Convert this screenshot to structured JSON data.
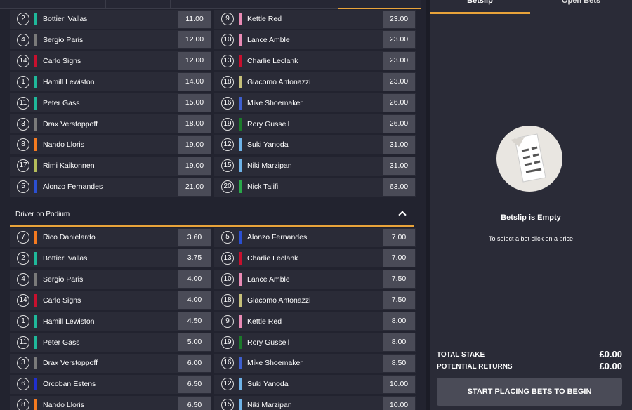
{
  "sections": [
    {
      "rows": [
        {
          "left": {
            "number": 2,
            "name": "Bottieri Vallas",
            "odds": "11.00",
            "color": "#1fb89a"
          },
          "right": {
            "number": 9,
            "name": "Kettle Red",
            "odds": "23.00",
            "color": "#e98bb5"
          }
        },
        {
          "left": {
            "number": 4,
            "name": "Sergio Paris",
            "odds": "12.00",
            "color": "#7a7a7a"
          },
          "right": {
            "number": 10,
            "name": "Lance Amble",
            "odds": "23.00",
            "color": "#e98bb5"
          }
        },
        {
          "left": {
            "number": 14,
            "name": "Carlo Signs",
            "odds": "12.00",
            "color": "#c8102e"
          },
          "right": {
            "number": 13,
            "name": "Charlie Leclank",
            "odds": "23.00",
            "color": "#c8102e"
          }
        },
        {
          "left": {
            "number": 1,
            "name": "Hamill Lewiston",
            "odds": "14.00",
            "color": "#1fb89a"
          },
          "right": {
            "number": 18,
            "name": "Giacomo Antonazzi",
            "odds": "23.00",
            "color": "#c6c07a"
          }
        },
        {
          "left": {
            "number": 11,
            "name": "Peter Gass",
            "odds": "15.00",
            "color": "#1fb89a"
          },
          "right": {
            "number": 16,
            "name": "Mike Shoemaker",
            "odds": "26.00",
            "color": "#3e5fcf"
          }
        },
        {
          "left": {
            "number": 3,
            "name": "Drax Verstoppoff",
            "odds": "18.00",
            "color": "#7a7a7a"
          },
          "right": {
            "number": 19,
            "name": "Rory Gussell",
            "odds": "26.00",
            "color": "#1b7a2a"
          }
        },
        {
          "left": {
            "number": 8,
            "name": "Nando Lloris",
            "odds": "19.00",
            "color": "#f47a20"
          },
          "right": {
            "number": 12,
            "name": "Suki Yanoda",
            "odds": "31.00",
            "color": "#6fb3e8"
          }
        },
        {
          "left": {
            "number": 17,
            "name": "Rimi Kaikonnen",
            "odds": "19.00",
            "color": "#b5bd5a"
          },
          "right": {
            "number": 15,
            "name": "Niki Marzipan",
            "odds": "31.00",
            "color": "#6fb3e8"
          }
        },
        {
          "left": {
            "number": 5,
            "name": "Alonzo Fernandes",
            "odds": "21.00",
            "color": "#2b4fd1"
          },
          "right": {
            "number": 20,
            "name": "Nick Talifi",
            "odds": "63.00",
            "color": "#2aa84a"
          }
        }
      ]
    },
    {
      "title": "Driver on Podium",
      "rows": [
        {
          "left": {
            "number": 7,
            "name": "Rico Danielardo",
            "odds": "3.60",
            "color": "#f47a20"
          },
          "right": {
            "number": 5,
            "name": "Alonzo Fernandes",
            "odds": "7.00",
            "color": "#2b4fd1"
          }
        },
        {
          "left": {
            "number": 2,
            "name": "Bottieri Vallas",
            "odds": "3.75",
            "color": "#1fb89a"
          },
          "right": {
            "number": 13,
            "name": "Charlie Leclank",
            "odds": "7.00",
            "color": "#c8102e"
          }
        },
        {
          "left": {
            "number": 4,
            "name": "Sergio Paris",
            "odds": "4.00",
            "color": "#7a7a7a"
          },
          "right": {
            "number": 10,
            "name": "Lance Amble",
            "odds": "7.50",
            "color": "#e98bb5"
          }
        },
        {
          "left": {
            "number": 14,
            "name": "Carlo Signs",
            "odds": "4.00",
            "color": "#c8102e"
          },
          "right": {
            "number": 18,
            "name": "Giacomo Antonazzi",
            "odds": "7.50",
            "color": "#c6c07a"
          }
        },
        {
          "left": {
            "number": 1,
            "name": "Hamill Lewiston",
            "odds": "4.50",
            "color": "#1fb89a"
          },
          "right": {
            "number": 9,
            "name": "Kettle Red",
            "odds": "8.00",
            "color": "#e98bb5"
          }
        },
        {
          "left": {
            "number": 11,
            "name": "Peter Gass",
            "odds": "5.00",
            "color": "#1fb89a"
          },
          "right": {
            "number": 19,
            "name": "Rory Gussell",
            "odds": "8.00",
            "color": "#1b7a2a"
          }
        },
        {
          "left": {
            "number": 3,
            "name": "Drax Verstoppoff",
            "odds": "6.00",
            "color": "#7a7a7a"
          },
          "right": {
            "number": 16,
            "name": "Mike Shoemaker",
            "odds": "8.50",
            "color": "#3e5fcf"
          }
        },
        {
          "left": {
            "number": 6,
            "name": "Orcoban Estens",
            "odds": "6.50",
            "color": "#1f2fd0"
          },
          "right": {
            "number": 12,
            "name": "Suki Yanoda",
            "odds": "10.00",
            "color": "#6fb3e8"
          }
        },
        {
          "left": {
            "number": 8,
            "name": "Nando Lloris",
            "odds": "6.50",
            "color": "#f47a20"
          },
          "right": {
            "number": 15,
            "name": "Niki Marzipan",
            "odds": "10.00",
            "color": "#6fb3e8"
          }
        }
      ]
    }
  ],
  "betslip": {
    "tabs": [
      "Betslip",
      "Open Bets"
    ],
    "empty_title": "Betslip is Empty",
    "empty_hint": "To select a bet click on a price",
    "total_stake_label": "TOTAL STAKE",
    "total_stake": "£0.00",
    "potential_returns_label": "POTENTIAL RETURNS",
    "potential_returns": "£0.00",
    "button": "START PLACING BETS TO BEGIN"
  }
}
